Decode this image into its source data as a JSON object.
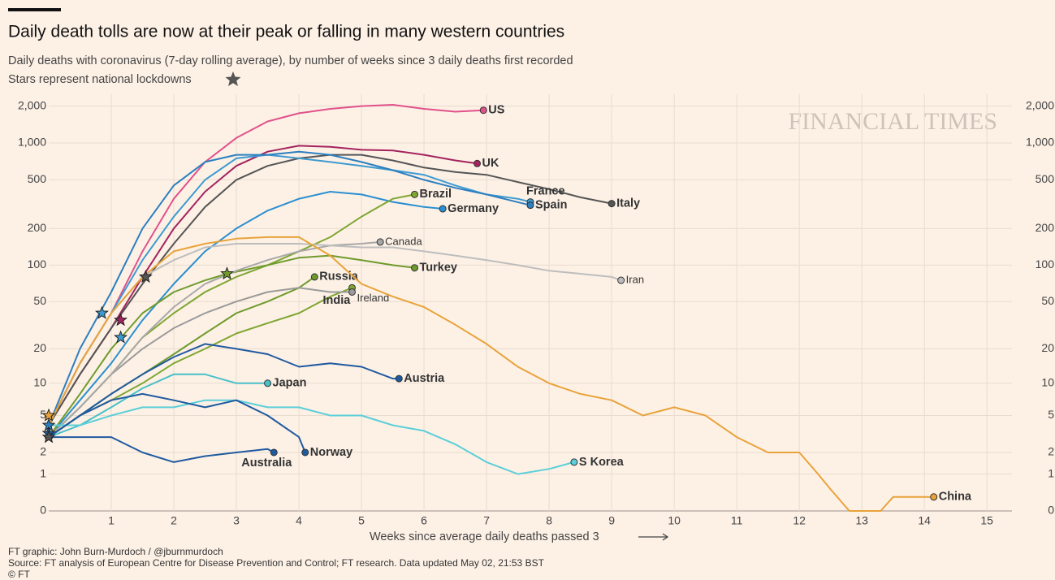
{
  "chart_data": {
    "type": "line",
    "title": "Daily death tolls are now at their peak or falling in many western countries",
    "subtitle": "Daily deaths with coronavirus (7-day rolling average), by number of weeks since 3 daily deaths first recorded",
    "note": "Stars represent national lockdowns",
    "watermark": "FINANCIAL TIMES",
    "xlabel": "Weeks since average daily deaths passed 3",
    "credits": [
      "FT graphic: John Burn-Murdoch / @jburnmurdoch",
      "Source: FT analysis of European Centre for Disease Prevention and Control; FT research. Data updated May 02, 21:53 BST",
      "© FT"
    ],
    "yscale": "log1p",
    "grid": true,
    "xlim": [
      0,
      15.4
    ],
    "ylim": [
      0,
      2500
    ],
    "xticks": [
      1,
      2,
      3,
      4,
      5,
      6,
      7,
      8,
      9,
      10,
      11,
      12,
      13,
      14,
      15
    ],
    "yticks": [
      0,
      1,
      2,
      5,
      10,
      20,
      50,
      100,
      200,
      500,
      {
        "value": 1000,
        "label": "1,000"
      },
      {
        "value": 2000,
        "label": "2,000"
      }
    ],
    "series": [
      {
        "name": "US",
        "color": "#e0528a",
        "x": [
          0,
          0.5,
          1,
          1.5,
          2,
          2.5,
          3,
          3.5,
          4,
          4.5,
          5,
          5.5,
          6,
          6.5,
          6.95
        ],
        "values": [
          4,
          15,
          40,
          130,
          350,
          700,
          1100,
          1500,
          1750,
          1900,
          2000,
          2050,
          1900,
          1800,
          1850
        ]
      },
      {
        "name": "UK",
        "color": "#a3245e",
        "x": [
          0,
          0.5,
          1,
          1.5,
          2,
          2.5,
          3,
          3.5,
          4,
          4.5,
          5,
          5.5,
          6,
          6.5,
          6.85
        ],
        "values": [
          4,
          12,
          30,
          80,
          200,
          400,
          650,
          850,
          950,
          930,
          880,
          870,
          800,
          720,
          680
        ]
      },
      {
        "name": "Italy",
        "color": "#555555",
        "x": [
          0,
          0.5,
          1,
          1.5,
          2,
          2.5,
          3,
          3.5,
          4,
          4.5,
          5,
          5.5,
          6,
          6.5,
          7,
          7.5,
          8,
          8.5,
          9
        ],
        "values": [
          4,
          12,
          30,
          70,
          150,
          300,
          500,
          650,
          750,
          800,
          800,
          720,
          630,
          580,
          550,
          480,
          420,
          360,
          320
        ]
      },
      {
        "name": "France",
        "color": "#3d9ad1",
        "x": [
          0,
          0.5,
          1,
          1.5,
          2,
          2.5,
          3,
          3.5,
          4,
          4.5,
          5,
          5.5,
          6,
          6.5,
          7,
          7.5,
          7.7
        ],
        "values": [
          4,
          15,
          40,
          110,
          250,
          500,
          750,
          800,
          750,
          700,
          650,
          600,
          550,
          450,
          380,
          350,
          330
        ]
      },
      {
        "name": "Spain",
        "color": "#2c7fc0",
        "x": [
          0,
          0.5,
          1,
          1.5,
          2,
          2.5,
          3,
          3.5,
          4,
          4.5,
          5,
          5.5,
          6,
          6.5,
          7,
          7.7
        ],
        "values": [
          4,
          20,
          60,
          200,
          450,
          700,
          800,
          800,
          850,
          800,
          700,
          600,
          500,
          430,
          380,
          310
        ]
      },
      {
        "name": "Germany",
        "color": "#2b8fd0",
        "x": [
          0,
          0.5,
          1,
          1.5,
          2,
          2.5,
          3,
          3.5,
          4,
          4.5,
          5,
          5.5,
          6,
          6.3
        ],
        "values": [
          3,
          7,
          15,
          35,
          70,
          130,
          200,
          280,
          350,
          400,
          380,
          330,
          300,
          290
        ]
      },
      {
        "name": "Brazil",
        "color": "#7fa632",
        "x": [
          0,
          0.5,
          1,
          1.5,
          2,
          2.5,
          3,
          3.5,
          4,
          4.5,
          5,
          5.5,
          5.85
        ],
        "values": [
          3,
          6,
          12,
          25,
          40,
          60,
          80,
          100,
          130,
          170,
          250,
          350,
          380
        ]
      },
      {
        "name": "Turkey",
        "color": "#6f9b2c",
        "x": [
          0,
          0.5,
          1,
          1.5,
          2,
          2.5,
          2.85,
          3.5,
          4,
          4.5,
          5,
          5.5,
          5.85
        ],
        "values": [
          3,
          8,
          20,
          40,
          60,
          75,
          85,
          100,
          115,
          120,
          110,
          100,
          95
        ]
      },
      {
        "name": "Russia",
        "color": "#6f9b2c",
        "x": [
          0,
          0.5,
          1,
          1.5,
          2,
          2.5,
          3,
          3.5,
          4,
          4.25
        ],
        "values": [
          3,
          5,
          8,
          12,
          18,
          27,
          40,
          50,
          65,
          80
        ]
      },
      {
        "name": "India",
        "color": "#7fa632",
        "x": [
          0,
          0.5,
          1,
          1.5,
          2,
          2.5,
          3,
          3.5,
          4,
          4.5,
          4.85
        ],
        "values": [
          3,
          5,
          7,
          10,
          15,
          20,
          27,
          33,
          40,
          55,
          65
        ]
      },
      {
        "name": "Ireland",
        "color": "#9a9a9a",
        "x": [
          0,
          0.5,
          1,
          1.5,
          2,
          2.5,
          3,
          3.5,
          4,
          4.5,
          4.85
        ],
        "values": [
          3,
          6,
          12,
          20,
          30,
          40,
          50,
          60,
          65,
          60,
          60
        ]
      },
      {
        "name": "Canada",
        "color": "#a8a8a8",
        "x": [
          0,
          0.5,
          1,
          1.5,
          2,
          2.5,
          3,
          3.5,
          4,
          4.5,
          5,
          5.3
        ],
        "values": [
          3,
          6,
          12,
          25,
          45,
          70,
          90,
          110,
          130,
          145,
          150,
          155
        ]
      },
      {
        "name": "Iran",
        "color": "#bdbdbd",
        "x": [
          0,
          0.5,
          1,
          1.5,
          2,
          2.5,
          3,
          3.5,
          4,
          4.5,
          5,
          5.5,
          6,
          6.5,
          7,
          7.5,
          8,
          8.5,
          9,
          9.15
        ],
        "values": [
          4,
          15,
          40,
          80,
          110,
          140,
          150,
          150,
          150,
          145,
          140,
          140,
          130,
          120,
          110,
          100,
          90,
          85,
          80,
          75
        ]
      },
      {
        "name": "China",
        "color": "#e8a33a",
        "x": [
          0,
          0.5,
          1,
          1.5,
          2,
          2.5,
          3,
          3.5,
          4,
          4.5,
          5,
          5.5,
          6,
          6.5,
          7,
          7.5,
          8,
          8.5,
          9,
          9.5,
          10,
          10.5,
          11,
          11.5,
          12,
          12.3,
          12.5,
          12.8,
          13,
          13.3,
          13.5,
          14,
          14.15
        ],
        "values": [
          4,
          15,
          40,
          80,
          130,
          150,
          165,
          170,
          170,
          120,
          70,
          55,
          45,
          32,
          22,
          14,
          10,
          8,
          7,
          5,
          6,
          5,
          3,
          2,
          2,
          1,
          0.5,
          0,
          0,
          0,
          0.3,
          0.3,
          0.3
        ]
      },
      {
        "name": "Austria",
        "color": "#1f5aa0",
        "x": [
          0,
          0.5,
          1,
          1.5,
          2,
          2.5,
          3,
          3.5,
          4,
          4.5,
          5,
          5.5,
          5.6
        ],
        "values": [
          3,
          5,
          8,
          12,
          17,
          22,
          20,
          18,
          14,
          15,
          14,
          11,
          11
        ]
      },
      {
        "name": "Japan",
        "color": "#48c0c8",
        "x": [
          0,
          0.5,
          1,
          1.5,
          2,
          2.5,
          3,
          3.5
        ],
        "values": [
          3,
          4,
          6,
          9,
          12,
          12,
          10,
          10
        ]
      },
      {
        "name": "S Korea",
        "color": "#5ccfd8",
        "x": [
          0,
          0.5,
          1,
          1.5,
          2,
          2.5,
          3,
          3.5,
          4,
          4.5,
          5,
          5.5,
          6,
          6.5,
          7,
          7.5,
          8,
          8.4
        ],
        "values": [
          4,
          4,
          5,
          6,
          6,
          7,
          7,
          6,
          6,
          5,
          5,
          4,
          3.5,
          2.5,
          1.5,
          1,
          1.2,
          1.5
        ]
      },
      {
        "name": "Norway",
        "color": "#1f5aa0",
        "x": [
          0,
          0.5,
          1,
          1.5,
          2,
          2.5,
          3,
          3.5,
          4,
          4.1
        ],
        "values": [
          3,
          5,
          7,
          8,
          7,
          6,
          7,
          5,
          3,
          2
        ]
      },
      {
        "name": "Australia",
        "color": "#1f5aa0",
        "x": [
          0,
          0.5,
          1,
          1.5,
          2,
          2.5,
          3,
          3.5,
          3.6
        ],
        "values": [
          3,
          3,
          3,
          2,
          1.5,
          1.8,
          2,
          2.2,
          2
        ]
      }
    ],
    "lockdowns": {
      "x": [
        0.85,
        1.15,
        1.15,
        1.55,
        2.85,
        0,
        0,
        0,
        0
      ],
      "values": [
        40,
        35,
        25,
        80,
        85,
        5,
        4,
        3.3,
        3
      ],
      "colors": [
        "#3d9ad1",
        "#a3245e",
        "#3d9ad1",
        "#555555",
        "#6f9b2c",
        "#e8a33a",
        "#2c7fc0",
        "#1f5aa0",
        "#555555"
      ]
    }
  }
}
